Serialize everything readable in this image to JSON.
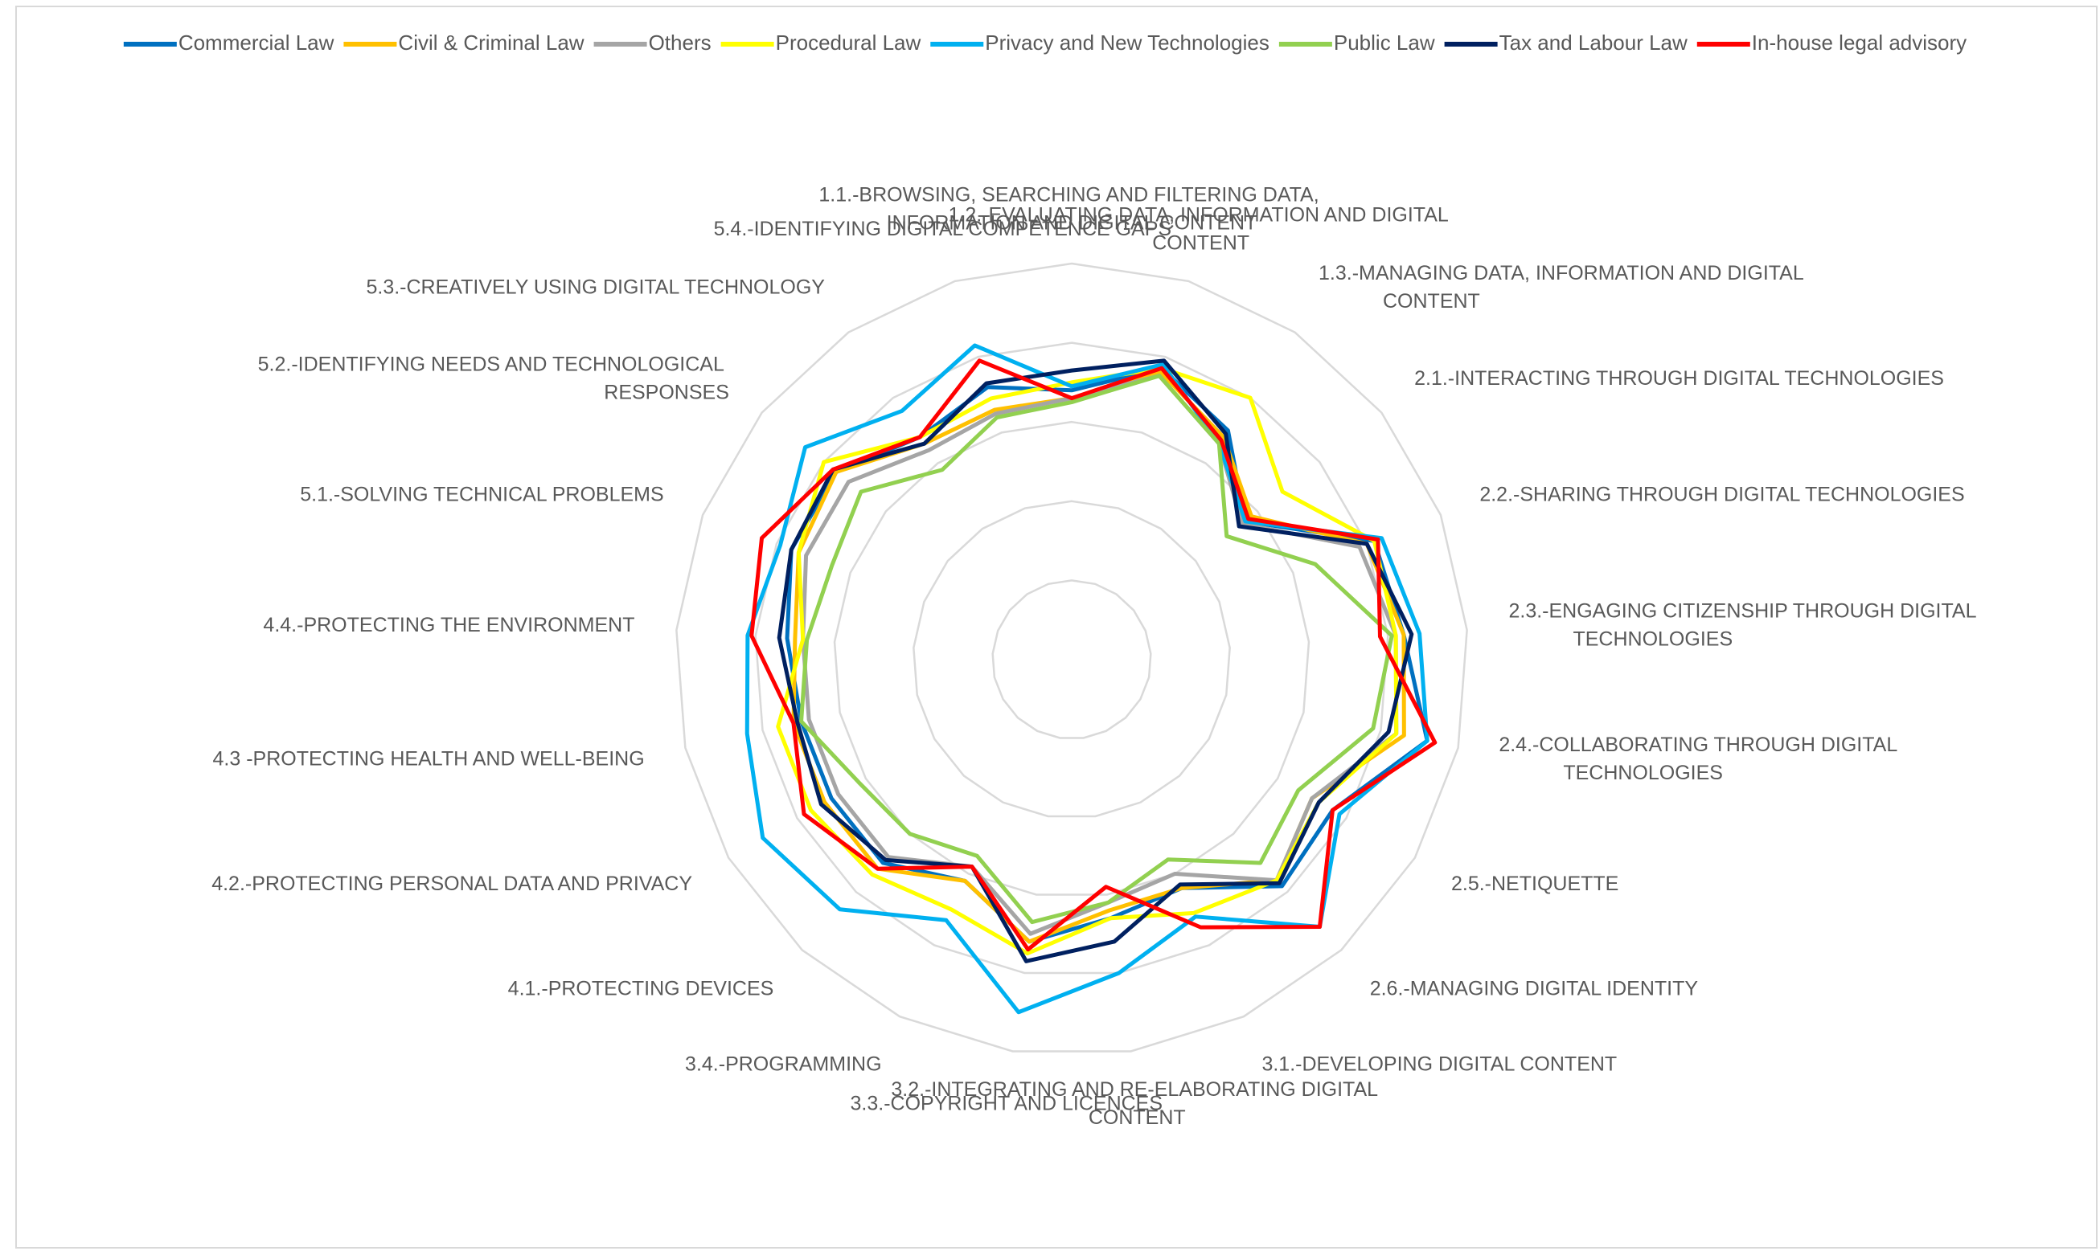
{
  "chart_data": {
    "type": "radar",
    "categories": [
      "1.1.-BROWSING, SEARCHING AND FILTERING DATA, INFORMATION AND DIGITAL CONTENT",
      "1.2.-EVALUATING DATA, INFORMATION AND DIGITAL CONTENT",
      "1.3.-MANAGING DATA, INFORMATION AND DIGITAL CONTENT",
      "2.1.-INTERACTING THROUGH DIGITAL TECHNOLOGIES",
      "2.2.-SHARING THROUGH DIGITAL TECHNOLOGIES",
      "2.3.-ENGAGING CITIZENSHIP THROUGH DIGITAL TECHNOLOGIES",
      "2.4.-COLLABORATING THROUGH DIGITAL TECHNOLOGIES",
      "2.5.-NETIQUETTE",
      "2.6.-MANAGING DIGITAL IDENTITY",
      "3.1.-DEVELOPING DIGITAL CONTENT",
      "3.2.-INTEGRATING AND RE-ELABORATING DIGITAL CONTENT",
      "3.3.-COPYRIGHT AND LICENCES",
      "3.4.-PROGRAMMING",
      "4.1.-PROTECTING DEVICES",
      "4.2.-PROTECTING PERSONAL DATA AND PRIVACY",
      "4.3 -PROTECTING HEALTH AND WELL-BEING",
      "4.4.-PROTECTING THE ENVIRONMENT",
      "5.1.-SOLVING TECHNICAL PROBLEMS",
      "5.2.-IDENTIFYING NEEDS AND TECHNOLOGICAL RESPONSES",
      "5.3.-CREATIVELY USING DIGITAL TECHNOLOGY",
      "5.4.-IDENTIFYING DIGITAL COMPETENCE GAPS"
    ],
    "series": [
      {
        "name": "Commercial Law",
        "color": "#0070c0",
        "values": [
          3.4,
          3.85,
          3.5,
          2.8,
          4.1,
          4.2,
          4.6,
          3.8,
          3.9,
          3.2,
          3.3,
          3.6,
          3.1,
          3.5,
          3.5,
          3.5,
          3.6,
          3.8,
          3.8,
          3.4,
          3.6
        ]
      },
      {
        "name": "Civil & Criminal Law",
        "color": "#ffc000",
        "values": [
          3.3,
          3.8,
          3.4,
          2.9,
          4.0,
          4.2,
          4.3,
          3.5,
          3.8,
          3.2,
          3.2,
          3.6,
          3.1,
          3.6,
          3.6,
          3.6,
          3.5,
          3.7,
          3.8,
          3.3,
          3.3
        ]
      },
      {
        "name": "Others",
        "color": "#a5a5a5",
        "values": [
          3.3,
          3.75,
          3.3,
          2.75,
          3.9,
          4.1,
          4.2,
          3.5,
          3.8,
          3.0,
          3.1,
          3.5,
          2.9,
          3.4,
          3.4,
          3.4,
          3.4,
          3.6,
          3.6,
          3.2,
          3.25
        ]
      },
      {
        "name": "Procedural Law",
        "color": "#ffff00",
        "values": [
          3.5,
          3.85,
          4.0,
          3.4,
          4.1,
          4.1,
          4.2,
          3.6,
          3.8,
          3.55,
          3.3,
          3.75,
          3.5,
          3.7,
          3.8,
          3.8,
          3.4,
          3.7,
          4.0,
          3.4,
          3.45
        ]
      },
      {
        "name": "Privacy and New Technologies",
        "color": "#00b0f0",
        "values": [
          3.45,
          3.9,
          3.3,
          2.8,
          4.2,
          4.4,
          4.6,
          3.9,
          4.6,
          3.6,
          4.0,
          4.5,
          3.65,
          4.3,
          4.5,
          4.2,
          4.1,
          3.95,
          4.3,
          3.8,
          4.15
        ]
      },
      {
        "name": "Public Law",
        "color": "#92d050",
        "values": [
          3.25,
          3.75,
          3.3,
          2.5,
          3.3,
          4.05,
          3.9,
          3.3,
          3.5,
          2.8,
          3.1,
          3.35,
          2.75,
          3.0,
          3.1,
          3.5,
          3.35,
          3.25,
          3.4,
          2.9,
          3.2
        ]
      },
      {
        "name": "Tax and Labour Law",
        "color": "#002060",
        "values": [
          3.65,
          3.95,
          3.45,
          2.7,
          4.0,
          4.3,
          4.1,
          3.6,
          3.85,
          3.15,
          3.6,
          3.85,
          2.9,
          3.45,
          3.65,
          3.55,
          3.7,
          3.8,
          3.85,
          3.3,
          3.65
        ]
      },
      {
        "name": "In-house legal advisory",
        "color": "#ff0000",
        "values": [
          3.3,
          3.85,
          3.35,
          2.85,
          4.15,
          3.9,
          4.7,
          3.8,
          4.6,
          3.75,
          2.9,
          3.7,
          2.9,
          3.6,
          3.9,
          3.6,
          4.05,
          4.2,
          3.85,
          3.4,
          3.95
        ]
      }
    ],
    "ylim": [
      0,
      5
    ],
    "yticks": [
      0,
      1,
      2,
      3,
      4,
      5
    ],
    "grid": true,
    "legend": "top"
  }
}
